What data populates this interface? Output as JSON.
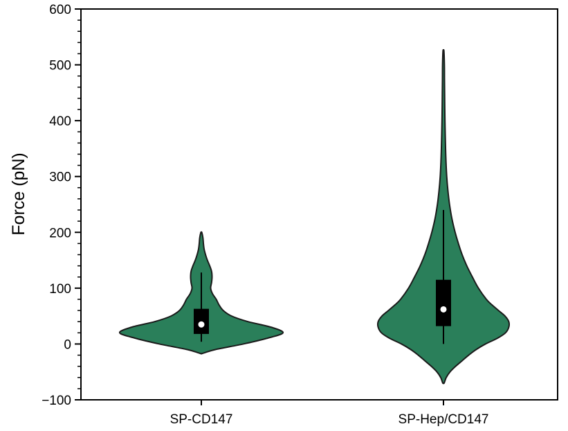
{
  "chart_data": {
    "type": "violin",
    "title": "",
    "xlabel": "",
    "ylabel": "Force (pN)",
    "ylim": [
      -100,
      600
    ],
    "yticks": [
      -100,
      0,
      100,
      200,
      300,
      400,
      500,
      600
    ],
    "ytick_labels": [
      "−100",
      "0",
      "100",
      "200",
      "300",
      "400",
      "500",
      "600"
    ],
    "y_minor_step": 20,
    "grid": false,
    "legend": "none",
    "fill_color": "#2a7f5a",
    "edge_color": "#1a1a1a",
    "box_color": "#000000",
    "median_color": "#ffffff",
    "categories": [
      "SP-CD147",
      "SP-Hep/CD147"
    ],
    "violins": [
      {
        "category": "SP-CD147",
        "median": 35,
        "q1": 18,
        "q3": 63,
        "whisker_low": 4,
        "whisker_high": 128,
        "kde_min": -17,
        "kde_max": 200,
        "density": [
          [
            -17,
            0.2
          ],
          [
            -10,
            3.0
          ],
          [
            0,
            9.0
          ],
          [
            10,
            14.0
          ],
          [
            20,
            17.5
          ],
          [
            30,
            15.0
          ],
          [
            40,
            10.0
          ],
          [
            50,
            6.5
          ],
          [
            60,
            4.7
          ],
          [
            70,
            3.8
          ],
          [
            80,
            3.2
          ],
          [
            90,
            2.4
          ],
          [
            100,
            2.0
          ],
          [
            110,
            2.2
          ],
          [
            120,
            2.3
          ],
          [
            130,
            2.2
          ],
          [
            140,
            1.8
          ],
          [
            150,
            1.3
          ],
          [
            160,
            0.9
          ],
          [
            170,
            0.6
          ],
          [
            180,
            0.45
          ],
          [
            190,
            0.35
          ],
          [
            200,
            0.1
          ]
        ]
      },
      {
        "category": "SP-Hep/CD147",
        "median": 62,
        "q1": 32,
        "q3": 115,
        "whisker_low": 0,
        "whisker_high": 240,
        "kde_min": -70,
        "kde_max": 525,
        "density": [
          [
            -70,
            0.15
          ],
          [
            -60,
            0.6
          ],
          [
            -50,
            1.4
          ],
          [
            -40,
            2.6
          ],
          [
            -30,
            4.0
          ],
          [
            -20,
            5.4
          ],
          [
            -10,
            7.0
          ],
          [
            0,
            9.0
          ],
          [
            10,
            11.5
          ],
          [
            20,
            13.3
          ],
          [
            30,
            14.0
          ],
          [
            40,
            14.0
          ],
          [
            50,
            13.2
          ],
          [
            60,
            11.8
          ],
          [
            70,
            10.4
          ],
          [
            80,
            9.2
          ],
          [
            100,
            7.5
          ],
          [
            120,
            6.2
          ],
          [
            140,
            5.0
          ],
          [
            160,
            4.0
          ],
          [
            180,
            3.2
          ],
          [
            200,
            2.5
          ],
          [
            225,
            1.8
          ],
          [
            250,
            1.3
          ],
          [
            275,
            0.95
          ],
          [
            300,
            0.7
          ],
          [
            325,
            0.55
          ],
          [
            350,
            0.45
          ],
          [
            375,
            0.38
          ],
          [
            400,
            0.32
          ],
          [
            425,
            0.28
          ],
          [
            450,
            0.25
          ],
          [
            475,
            0.22
          ],
          [
            500,
            0.2
          ],
          [
            525,
            0.1
          ]
        ]
      }
    ]
  }
}
